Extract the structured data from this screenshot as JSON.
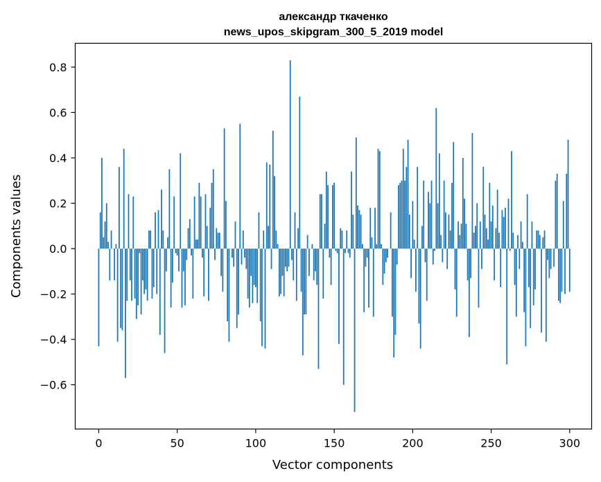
{
  "chart_data": {
    "type": "bar",
    "title": "александр ткаченко",
    "subtitle": "news_upos_skipgram_300_5_2019 model",
    "xlabel": "Vector components",
    "ylabel": "Components values",
    "xlim": [
      -15,
      314
    ],
    "ylim": [
      -0.795,
      0.905
    ],
    "xticks": [
      0,
      50,
      100,
      150,
      200,
      250,
      300
    ],
    "yticks": [
      -0.6,
      -0.4,
      -0.2,
      0.0,
      0.2,
      0.4,
      0.6,
      0.8
    ],
    "ytick_labels": [
      "−0.6",
      "−0.4",
      "−0.2",
      "0.0",
      "0.2",
      "0.4",
      "0.6",
      "0.8"
    ],
    "grid": false,
    "color": "#1f77b4",
    "x_start": 0,
    "values": [
      -0.43,
      0.16,
      0.4,
      0.05,
      0.12,
      0.2,
      0.03,
      -0.14,
      0.08,
      0.0,
      -0.14,
      0.02,
      -0.41,
      0.36,
      -0.35,
      -0.36,
      0.44,
      -0.57,
      -0.23,
      0.24,
      -0.14,
      -0.23,
      0.23,
      -0.22,
      -0.31,
      -0.25,
      -0.02,
      -0.29,
      -0.14,
      -0.2,
      -0.18,
      -0.23,
      0.08,
      0.08,
      -0.22,
      -0.17,
      0.16,
      -0.2,
      0.17,
      -0.38,
      0.26,
      0.08,
      -0.46,
      -0.1,
      0.05,
      0.35,
      -0.26,
      -0.15,
      0.23,
      -0.02,
      -0.03,
      -0.1,
      0.42,
      -0.26,
      -0.1,
      -0.25,
      -0.05,
      0.09,
      0.13,
      -0.03,
      -0.22,
      0.23,
      0.04,
      0.04,
      0.29,
      0.23,
      -0.04,
      -0.21,
      0.24,
      0.1,
      -0.23,
      0.18,
      0.29,
      0.35,
      -0.05,
      0.09,
      0.07,
      0.07,
      -0.12,
      -0.19,
      0.53,
      0.21,
      -0.32,
      -0.41,
      0.0,
      -0.04,
      -0.08,
      0.12,
      -0.35,
      -0.29,
      0.55,
      -0.07,
      0.08,
      -0.04,
      -0.09,
      -0.22,
      -0.26,
      -0.12,
      -0.24,
      -0.16,
      -0.17,
      -0.24,
      0.16,
      -0.32,
      -0.43,
      0.08,
      -0.44,
      0.38,
      0.1,
      0.37,
      -0.09,
      0.52,
      0.32,
      0.08,
      0.02,
      -0.21,
      -0.2,
      -0.12,
      -0.21,
      -0.08,
      -0.1,
      -0.08,
      0.83,
      -0.05,
      -0.14,
      0.16,
      -0.23,
      0.09,
      0.67,
      -0.19,
      -0.47,
      -0.29,
      -0.29,
      0.06,
      -0.12,
      0.0,
      0.02,
      -0.14,
      -0.1,
      -0.16,
      -0.53,
      0.24,
      0.24,
      -0.22,
      0.11,
      0.34,
      0.28,
      -0.04,
      -0.16,
      0.28,
      0.29,
      -0.01,
      -0.02,
      -0.42,
      0.09,
      0.08,
      -0.6,
      -0.02,
      0.08,
      -0.02,
      -0.04,
      0.34,
      0.15,
      -0.72,
      0.49,
      0.19,
      0.17,
      0.15,
      0.02,
      -0.28,
      -0.08,
      -0.04,
      -0.26,
      0.18,
      0.05,
      -0.3,
      0.18,
      0.02,
      0.44,
      0.43,
      0.02,
      -0.16,
      -0.11,
      -0.06,
      -0.04,
      0.0,
      0.16,
      -0.3,
      -0.48,
      -0.38,
      -0.07,
      0.28,
      0.29,
      0.3,
      0.44,
      0.3,
      0.36,
      0.48,
      0.15,
      -0.13,
      0.21,
      0.04,
      -0.19,
      0.36,
      -0.33,
      -0.44,
      0.1,
      0.3,
      -0.06,
      -0.23,
      0.25,
      0.2,
      0.3,
      -0.07,
      -0.01,
      0.62,
      0.2,
      0.42,
      0.06,
      -0.06,
      0.3,
      0.16,
      -0.09,
      0.15,
      0.08,
      0.29,
      0.47,
      -0.18,
      -0.3,
      0.12,
      0.06,
      0.11,
      0.4,
      0.22,
      0.11,
      -0.14,
      -0.39,
      -0.13,
      0.51,
      0.07,
      0.1,
      0.2,
      -0.26,
      0.12,
      -0.09,
      0.36,
      0.15,
      0.09,
      0.04,
      0.29,
      0.12,
      0.19,
      -0.14,
      0.09,
      0.26,
      0.07,
      -0.17,
      0.17,
      0.14,
      0.18,
      -0.51,
      0.22,
      -0.01,
      0.43,
      0.07,
      -0.16,
      -0.3,
      0.06,
      -0.09,
      0.12,
      0.03,
      -0.28,
      -0.43,
      0.24,
      -0.17,
      -0.35,
      0.12,
      -0.25,
      -0.18,
      0.08,
      0.08,
      0.06,
      -0.37,
      0.05,
      0.08,
      -0.41,
      -0.05,
      -0.13,
      -0.09,
      0.0,
      -0.08,
      0.3,
      0.33,
      -0.23,
      -0.24,
      -0.19,
      0.21,
      -0.2,
      0.33,
      0.48,
      -0.19
    ]
  }
}
